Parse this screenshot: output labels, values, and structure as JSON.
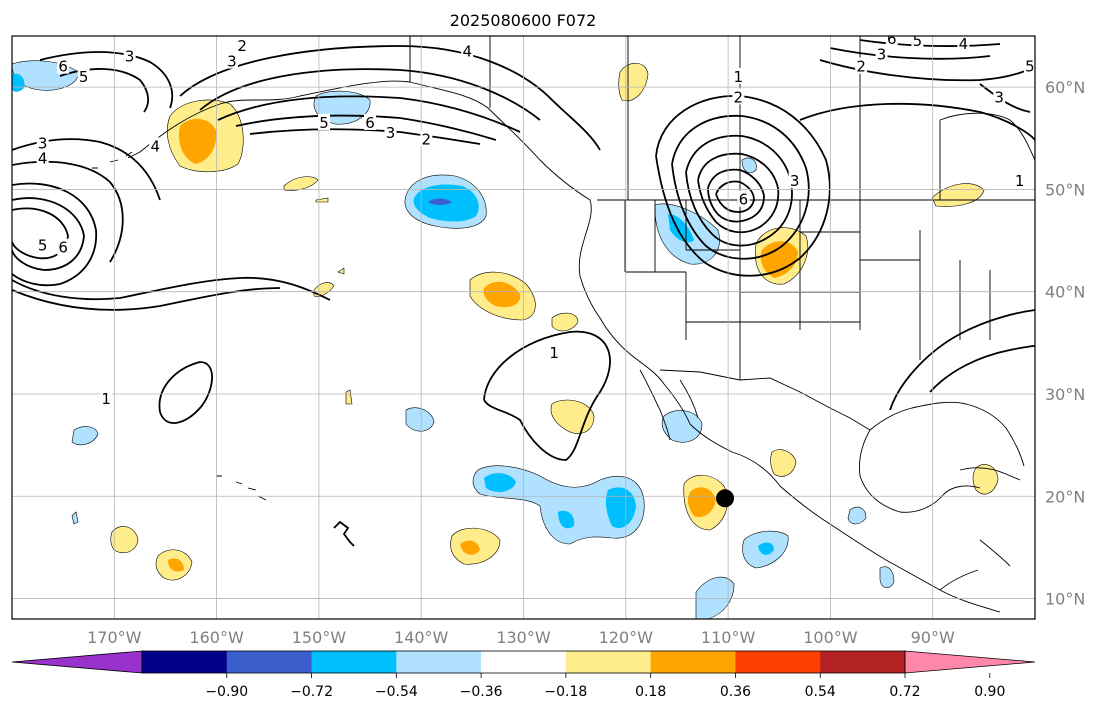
{
  "title": "2025080600 F072",
  "map": {
    "lon_range": [
      -180,
      -80
    ],
    "lat_range": [
      8,
      65
    ],
    "lon_ticks": [
      {
        "value": -170,
        "label": "170°W"
      },
      {
        "value": -160,
        "label": "160°W"
      },
      {
        "value": -150,
        "label": "150°W"
      },
      {
        "value": -140,
        "label": "140°W"
      },
      {
        "value": -130,
        "label": "130°W"
      },
      {
        "value": -120,
        "label": "120°W"
      },
      {
        "value": -110,
        "label": "110°W"
      },
      {
        "value": -100,
        "label": "100°W"
      },
      {
        "value": -90,
        "label": "90°W"
      }
    ],
    "lat_ticks": [
      {
        "value": 60,
        "label": "60°N"
      },
      {
        "value": 50,
        "label": "50°N"
      },
      {
        "value": 40,
        "label": "40°N"
      },
      {
        "value": 30,
        "label": "30°N"
      },
      {
        "value": 20,
        "label": "20°N"
      },
      {
        "value": 10,
        "label": "10°N"
      }
    ],
    "grid": true,
    "ocean_color": "#ffffff",
    "contour_color": "#000000",
    "contour_labels": [
      {
        "text": "6",
        "lon": -175.0,
        "lat": 62.0
      },
      {
        "text": "5",
        "lon": -173.0,
        "lat": 61.0
      },
      {
        "text": "3",
        "lon": -168.5,
        "lat": 63.0
      },
      {
        "text": "3",
        "lon": -158.5,
        "lat": 62.5
      },
      {
        "text": "2",
        "lon": -157.5,
        "lat": 64.0
      },
      {
        "text": "4",
        "lon": -135.5,
        "lat": 63.5
      },
      {
        "text": "5",
        "lon": -149.5,
        "lat": 56.5
      },
      {
        "text": "6",
        "lon": -145.0,
        "lat": 56.5
      },
      {
        "text": "3",
        "lon": -143.0,
        "lat": 55.5
      },
      {
        "text": "2",
        "lon": -139.5,
        "lat": 54.9
      },
      {
        "text": "3",
        "lon": -177.0,
        "lat": 54.5
      },
      {
        "text": "4",
        "lon": -177.0,
        "lat": 53.0
      },
      {
        "text": "4",
        "lon": -166.0,
        "lat": 54.2
      },
      {
        "text": "5",
        "lon": -177.0,
        "lat": 44.5
      },
      {
        "text": "6",
        "lon": -175.0,
        "lat": 44.3
      },
      {
        "text": "1",
        "lon": -109.0,
        "lat": 61.0
      },
      {
        "text": "2",
        "lon": -109.0,
        "lat": 59.0
      },
      {
        "text": "3",
        "lon": -103.5,
        "lat": 50.8
      },
      {
        "text": "6",
        "lon": -108.5,
        "lat": 49.0
      },
      {
        "text": "2",
        "lon": -97.0,
        "lat": 62.0
      },
      {
        "text": "3",
        "lon": -95.0,
        "lat": 63.2
      },
      {
        "text": "6",
        "lon": -94.0,
        "lat": 64.7
      },
      {
        "text": "5",
        "lon": -91.5,
        "lat": 64.5
      },
      {
        "text": "4",
        "lon": -87.0,
        "lat": 64.2
      },
      {
        "text": "3",
        "lon": -83.5,
        "lat": 59.0
      },
      {
        "text": "5",
        "lon": -80.5,
        "lat": 62.0
      },
      {
        "text": "1",
        "lon": -81.5,
        "lat": 50.8
      },
      {
        "text": "1",
        "lon": -127.0,
        "lat": 34.0
      },
      {
        "text": "1",
        "lon": -170.8,
        "lat": 29.5
      }
    ],
    "storm_marker": {
      "lon": -110.3,
      "lat": 19.8,
      "color": "#000000"
    }
  },
  "colorbar": {
    "colors": [
      "#9932cc",
      "#00008b",
      "#3a5fcd",
      "#00bfff",
      "#b0e2ff",
      "#ffffff",
      "#ffec8b",
      "#ffa500",
      "#ff4000",
      "#b22222",
      "#ff88aa"
    ],
    "tick_labels": [
      "−0.90",
      "−0.72",
      "−0.54",
      "−0.36",
      "−0.18",
      "0.18",
      "0.36",
      "0.54",
      "0.72",
      "0.90"
    ]
  }
}
